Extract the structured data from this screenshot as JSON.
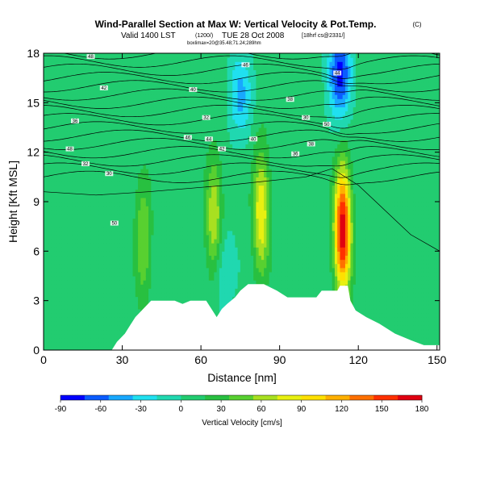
{
  "chart_data": {
    "type": "heatmap",
    "title": "Wind-Parallel Section at Max W: Vertical Velocity & Pot.Temp.",
    "title_mark": "(C)",
    "valid_line": "Valid 1400 LST",
    "valid_utc": "(1200/)",
    "valid_date": "TUE 28 Oct 2008",
    "valid_run": "[18hrf cs@2331/]",
    "fine_print": "boxlimax=20@35.48;71.24;289hm",
    "xlabel": "Distance [nm]",
    "ylabel": "Height [Kft MSL]",
    "xlim": [
      0,
      151
    ],
    "ylim": [
      0,
      18
    ],
    "x_ticks": [
      "0",
      "30",
      "60",
      "90",
      "120",
      "150"
    ],
    "y_ticks": [
      "0",
      "3",
      "6",
      "9",
      "12",
      "15",
      "18"
    ],
    "colorbar": {
      "label": "Vertical Velocity [cm/s]",
      "range": [
        -90,
        180
      ],
      "ticks": [
        "-90",
        "-60",
        "-30",
        "0",
        "30",
        "60",
        "90",
        "120",
        "150",
        "180"
      ],
      "colors": [
        "#0000ff",
        "#0a5cff",
        "#18a8ff",
        "#20e0f0",
        "#20d8b0",
        "#22cc70",
        "#28c040",
        "#58d030",
        "#a8e020",
        "#e8f010",
        "#ffe000",
        "#ffb000",
        "#ff7000",
        "#ff3000",
        "#e00010"
      ]
    },
    "series": [
      {
        "name": "updraft",
        "x": 114,
        "y": 7.2,
        "peak": 175
      },
      {
        "name": "updraft",
        "x": 83,
        "y": 8.5,
        "peak": 85
      },
      {
        "name": "updraft",
        "x": 65,
        "y": 8.0,
        "peak": 70
      },
      {
        "name": "updraft",
        "x": 38,
        "y": 6.5,
        "peak": 50
      },
      {
        "name": "downdraft",
        "x": 113,
        "y": 16.8,
        "peak": -85
      },
      {
        "name": "downdraft",
        "x": 75,
        "y": 15.5,
        "peak": -45
      },
      {
        "name": "downdraft",
        "x": 68,
        "y": 5.0,
        "peak": -30
      }
    ],
    "contour_labels": [
      "48",
      "46",
      "44",
      "42",
      "40",
      "38",
      "36",
      "32",
      "30",
      "50"
    ]
  },
  "colors": {
    "background": "#ffffff",
    "terrain": "#ffffff",
    "contour": "#000000"
  }
}
